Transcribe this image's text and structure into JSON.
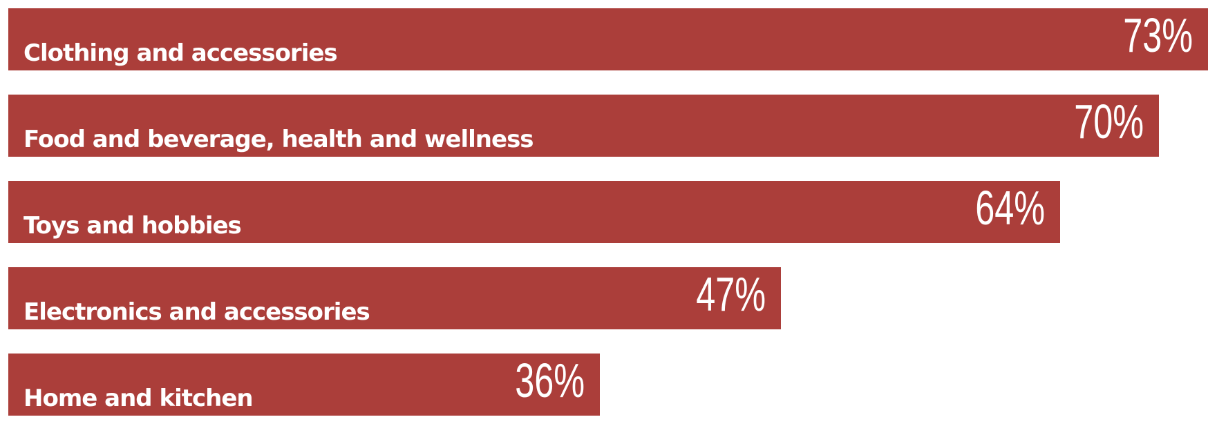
{
  "chart_data": {
    "type": "bar",
    "orientation": "horizontal",
    "categories": [
      "Clothing and accessories",
      "Food and beverage, health and wellness",
      "Toys and hobbies",
      "Electronics and accessories",
      "Home and kitchen"
    ],
    "values": [
      73,
      70,
      64,
      47,
      36
    ],
    "value_labels": [
      "73%",
      "70%",
      "64%",
      "47%",
      "36%"
    ],
    "unit": "%",
    "xlim": [
      0,
      73
    ],
    "grid": false,
    "legend": "none",
    "title": "",
    "xlabel": "",
    "ylabel": ""
  },
  "colors": {
    "bar": "#ab3e3a",
    "text": "#ffffff",
    "background": "#ffffff"
  }
}
